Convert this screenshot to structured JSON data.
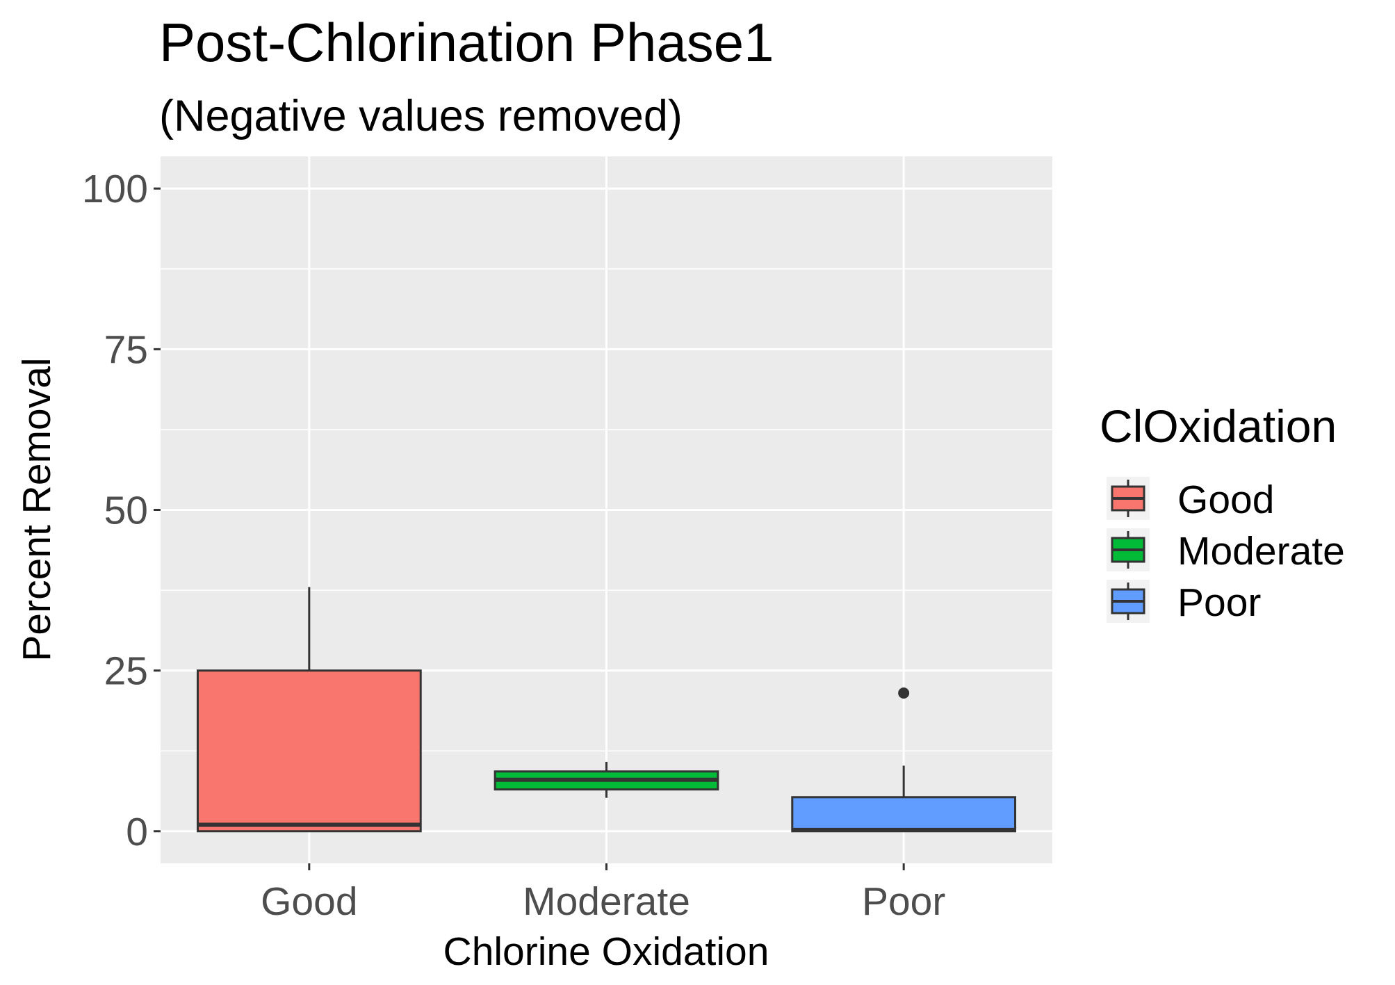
{
  "chart_data": {
    "type": "boxplot",
    "title": "Post-Chlorination Phase1",
    "subtitle": "(Negative values removed)",
    "xlabel": "Chlorine Oxidation",
    "ylabel": "Percent Removal",
    "ylim": [
      -5,
      105
    ],
    "yticks": [
      0,
      25,
      50,
      75,
      100
    ],
    "ytick_labels": [
      "0",
      "25",
      "50",
      "75",
      "100"
    ],
    "grid": true,
    "legend": {
      "title": "ClOxidation",
      "placement": "right"
    },
    "categories": [
      "Good",
      "Moderate",
      "Poor"
    ],
    "series": [
      {
        "name": "Good",
        "color": "#F8766D",
        "min": 0,
        "q1": 0,
        "median": 1,
        "q3": 25,
        "max": 38,
        "outliers": []
      },
      {
        "name": "Moderate",
        "color": "#00BA38",
        "min": 5.2,
        "q1": 6.5,
        "median": 8,
        "q3": 9.3,
        "max": 10.8,
        "outliers": []
      },
      {
        "name": "Poor",
        "color": "#619CFF",
        "min": 0,
        "q1": 0,
        "median": 0.2,
        "q3": 5.3,
        "max": 10.2,
        "outliers": [
          21.5
        ]
      }
    ]
  }
}
